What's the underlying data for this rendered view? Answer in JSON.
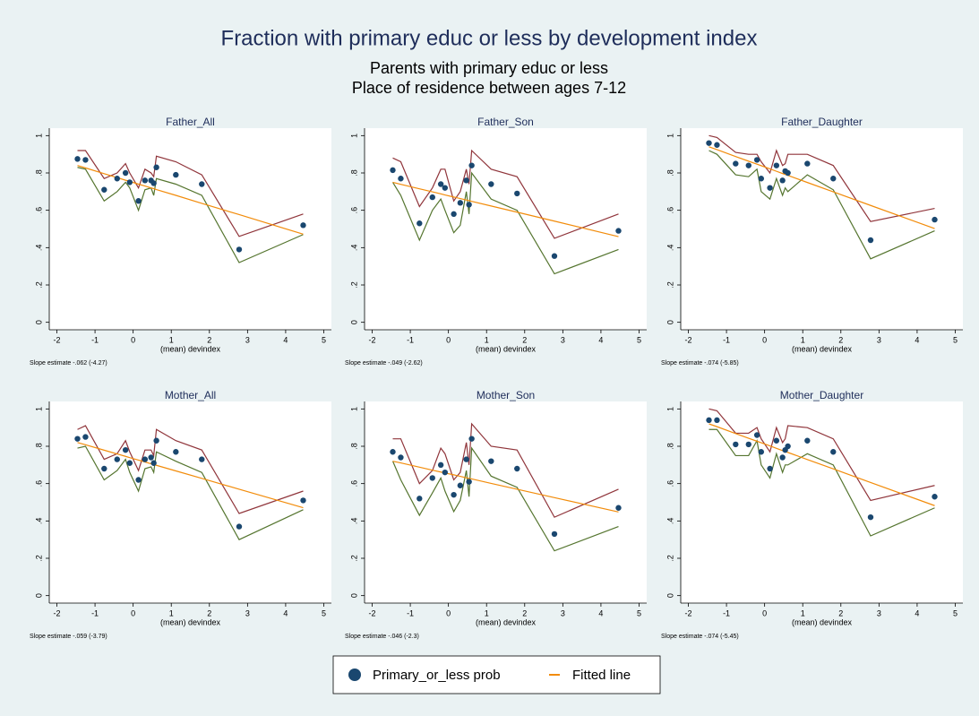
{
  "title": "Fraction with primary educ or less by development index",
  "subtitle": [
    "Parents with primary educ or less",
    "Place of residence between ages 7-12"
  ],
  "chart_data": [
    {
      "type": "scatter",
      "title": "Father_All",
      "xlabel": "(mean) devindex",
      "note": "Slope estimate -.062 (-4.27)",
      "x": [
        -1.46,
        -1.25,
        -0.76,
        -0.42,
        -0.2,
        -0.09,
        0.14,
        0.31,
        0.47,
        0.54,
        0.61,
        1.12,
        1.8,
        2.78,
        4.46
      ],
      "xlim": [
        -2.2,
        5.2
      ],
      "ylim": [
        -0.04,
        1.04
      ],
      "xticks": [
        -2,
        -1,
        0,
        1,
        2,
        3,
        4,
        5
      ],
      "yticks": [
        0,
        {
          "value": 0.2,
          "label": ".2"
        },
        {
          "value": 0.4,
          "label": ".4"
        },
        {
          "value": 0.6,
          "label": ".6"
        },
        {
          "value": 0.8,
          "label": ".8"
        },
        1
      ],
      "series": [
        {
          "mode": "line",
          "color": "#90353b",
          "values": [
            0.92,
            0.92,
            0.77,
            0.8,
            0.85,
            0.8,
            0.72,
            0.82,
            0.8,
            0.78,
            0.89,
            0.86,
            0.79,
            0.46,
            0.58
          ]
        },
        {
          "mode": "line",
          "color": "#55752f",
          "values": [
            0.83,
            0.82,
            0.65,
            0.7,
            0.75,
            0.72,
            0.6,
            0.71,
            0.72,
            0.68,
            0.77,
            0.74,
            0.68,
            0.32,
            0.47
          ]
        },
        {
          "name": "Fitted line",
          "mode": "line",
          "color": "#f28c0b",
          "values": [
            0.84,
            0.827,
            0.796,
            0.775,
            0.761,
            0.755,
            0.74,
            0.73,
            0.72,
            0.716,
            0.711,
            0.68,
            0.637,
            0.577,
            0.472
          ]
        },
        {
          "name": "Primary_or_less prob",
          "mode": "markers",
          "color": "#1a476f",
          "values": [
            0.875,
            0.87,
            0.71,
            0.77,
            0.8,
            0.75,
            0.65,
            0.76,
            0.76,
            0.745,
            0.83,
            0.79,
            0.74,
            0.39,
            0.52
          ]
        }
      ]
    },
    {
      "type": "scatter",
      "title": "Father_Son",
      "xlabel": "(mean) devindex",
      "note": "Slope estimate -.049 (-2.62)",
      "x": [
        -1.46,
        -1.25,
        -0.76,
        -0.42,
        -0.2,
        -0.09,
        0.14,
        0.31,
        0.47,
        0.54,
        0.61,
        1.12,
        1.8,
        2.78,
        4.46
      ],
      "xlim": [
        -2.2,
        5.2
      ],
      "ylim": [
        -0.04,
        1.04
      ],
      "xticks": [
        -2,
        -1,
        0,
        1,
        2,
        3,
        4,
        5
      ],
      "yticks": [
        0,
        {
          "value": 0.2,
          "label": ".2"
        },
        {
          "value": 0.4,
          "label": ".4"
        },
        {
          "value": 0.6,
          "label": ".6"
        },
        {
          "value": 0.8,
          "label": ".8"
        },
        1
      ],
      "series": [
        {
          "mode": "line",
          "color": "#90353b",
          "values": [
            0.88,
            0.86,
            0.62,
            0.72,
            0.82,
            0.82,
            0.65,
            0.7,
            0.82,
            0.74,
            0.92,
            0.82,
            0.78,
            0.45,
            0.58
          ]
        },
        {
          "mode": "line",
          "color": "#55752f",
          "values": [
            0.75,
            0.68,
            0.44,
            0.6,
            0.66,
            0.6,
            0.48,
            0.52,
            0.7,
            0.58,
            0.8,
            0.66,
            0.6,
            0.26,
            0.39
          ]
        },
        {
          "name": "Fitted line",
          "mode": "line",
          "color": "#f28c0b",
          "values": [
            0.75,
            0.739,
            0.715,
            0.699,
            0.688,
            0.682,
            0.671,
            0.663,
            0.655,
            0.652,
            0.648,
            0.623,
            0.59,
            0.542,
            0.459
          ]
        },
        {
          "name": "Primary_or_less prob",
          "mode": "markers",
          "color": "#1a476f",
          "values": [
            0.815,
            0.77,
            0.53,
            0.67,
            0.74,
            0.72,
            0.58,
            0.64,
            0.76,
            0.63,
            0.84,
            0.74,
            0.69,
            0.355,
            0.49
          ]
        }
      ]
    },
    {
      "type": "scatter",
      "title": "Father_Daughter",
      "xlabel": "(mean) devindex",
      "note": "Slope estimate -.074 (-5.85)",
      "x": [
        -1.46,
        -1.25,
        -0.76,
        -0.42,
        -0.2,
        -0.09,
        0.14,
        0.31,
        0.47,
        0.54,
        0.61,
        1.12,
        1.8,
        2.78,
        4.46
      ],
      "xlim": [
        -2.2,
        5.2
      ],
      "ylim": [
        -0.04,
        1.04
      ],
      "xticks": [
        -2,
        -1,
        0,
        1,
        2,
        3,
        4,
        5
      ],
      "yticks": [
        0,
        {
          "value": 0.2,
          "label": ".2"
        },
        {
          "value": 0.4,
          "label": ".4"
        },
        {
          "value": 0.6,
          "label": ".6"
        },
        {
          "value": 0.8,
          "label": ".8"
        },
        1
      ],
      "series": [
        {
          "mode": "line",
          "color": "#90353b",
          "values": [
            1.0,
            0.99,
            0.91,
            0.9,
            0.9,
            0.86,
            0.8,
            0.92,
            0.84,
            0.85,
            0.9,
            0.9,
            0.84,
            0.54,
            0.61
          ]
        },
        {
          "mode": "line",
          "color": "#55752f",
          "values": [
            0.92,
            0.9,
            0.79,
            0.78,
            0.82,
            0.7,
            0.66,
            0.77,
            0.68,
            0.72,
            0.7,
            0.79,
            0.71,
            0.34,
            0.49
          ]
        },
        {
          "name": "Fitted line",
          "mode": "line",
          "color": "#f28c0b",
          "values": [
            0.94,
            0.925,
            0.888,
            0.863,
            0.847,
            0.839,
            0.822,
            0.809,
            0.797,
            0.792,
            0.787,
            0.749,
            0.699,
            0.626,
            0.502
          ]
        },
        {
          "name": "Primary_or_less prob",
          "mode": "markers",
          "color": "#1a476f",
          "values": [
            0.96,
            0.95,
            0.85,
            0.84,
            0.87,
            0.77,
            0.72,
            0.84,
            0.76,
            0.81,
            0.8,
            0.85,
            0.77,
            0.44,
            0.55
          ]
        }
      ]
    },
    {
      "type": "scatter",
      "title": "Mother_All",
      "xlabel": "(mean) devindex",
      "note": "Slope estimate -.059 (-3.79)",
      "x": [
        -1.46,
        -1.25,
        -0.76,
        -0.42,
        -0.2,
        -0.09,
        0.14,
        0.31,
        0.47,
        0.54,
        0.61,
        1.12,
        1.8,
        2.78,
        4.46
      ],
      "xlim": [
        -2.2,
        5.2
      ],
      "ylim": [
        -0.04,
        1.04
      ],
      "xticks": [
        -2,
        -1,
        0,
        1,
        2,
        3,
        4,
        5
      ],
      "yticks": [
        0,
        {
          "value": 0.2,
          "label": ".2"
        },
        {
          "value": 0.4,
          "label": ".4"
        },
        {
          "value": 0.6,
          "label": ".6"
        },
        {
          "value": 0.8,
          "label": ".8"
        },
        1
      ],
      "series": [
        {
          "mode": "line",
          "color": "#90353b",
          "values": [
            0.89,
            0.91,
            0.73,
            0.76,
            0.83,
            0.77,
            0.67,
            0.78,
            0.78,
            0.75,
            0.89,
            0.83,
            0.78,
            0.44,
            0.56
          ]
        },
        {
          "mode": "line",
          "color": "#55752f",
          "values": [
            0.79,
            0.8,
            0.62,
            0.67,
            0.73,
            0.66,
            0.56,
            0.68,
            0.69,
            0.66,
            0.77,
            0.72,
            0.66,
            0.3,
            0.46
          ]
        },
        {
          "name": "Fitted line",
          "mode": "line",
          "color": "#f28c0b",
          "values": [
            0.82,
            0.808,
            0.779,
            0.759,
            0.746,
            0.739,
            0.726,
            0.716,
            0.706,
            0.702,
            0.698,
            0.668,
            0.628,
            0.57,
            0.471
          ]
        },
        {
          "name": "Primary_or_less prob",
          "mode": "markers",
          "color": "#1a476f",
          "values": [
            0.84,
            0.85,
            0.68,
            0.73,
            0.78,
            0.71,
            0.62,
            0.73,
            0.74,
            0.71,
            0.83,
            0.77,
            0.73,
            0.37,
            0.51
          ]
        }
      ]
    },
    {
      "type": "scatter",
      "title": "Mother_Son",
      "xlabel": "(mean) devindex",
      "note": "Slope estimate -.046 (-2.3)",
      "x": [
        -1.46,
        -1.25,
        -0.76,
        -0.42,
        -0.2,
        -0.09,
        0.14,
        0.31,
        0.47,
        0.54,
        0.61,
        1.12,
        1.8,
        2.78,
        4.46
      ],
      "xlim": [
        -2.2,
        5.2
      ],
      "ylim": [
        -0.04,
        1.04
      ],
      "xticks": [
        -2,
        -1,
        0,
        1,
        2,
        3,
        4,
        5
      ],
      "yticks": [
        0,
        {
          "value": 0.2,
          "label": ".2"
        },
        {
          "value": 0.4,
          "label": ".4"
        },
        {
          "value": 0.6,
          "label": ".6"
        },
        {
          "value": 0.8,
          "label": ".8"
        },
        1
      ],
      "series": [
        {
          "mode": "line",
          "color": "#90353b",
          "values": [
            0.84,
            0.84,
            0.6,
            0.67,
            0.79,
            0.76,
            0.62,
            0.66,
            0.82,
            0.7,
            0.92,
            0.8,
            0.78,
            0.42,
            0.57
          ]
        },
        {
          "mode": "line",
          "color": "#55752f",
          "values": [
            0.72,
            0.62,
            0.43,
            0.55,
            0.63,
            0.56,
            0.45,
            0.51,
            0.67,
            0.53,
            0.79,
            0.64,
            0.58,
            0.24,
            0.37
          ]
        },
        {
          "name": "Fitted line",
          "mode": "line",
          "color": "#f28c0b",
          "values": [
            0.72,
            0.711,
            0.688,
            0.672,
            0.662,
            0.657,
            0.647,
            0.639,
            0.631,
            0.628,
            0.625,
            0.601,
            0.57,
            0.525,
            0.448
          ]
        },
        {
          "name": "Primary_or_less prob",
          "mode": "markers",
          "color": "#1a476f",
          "values": [
            0.77,
            0.74,
            0.52,
            0.63,
            0.7,
            0.66,
            0.54,
            0.59,
            0.73,
            0.61,
            0.84,
            0.72,
            0.68,
            0.33,
            0.47
          ]
        }
      ]
    },
    {
      "type": "scatter",
      "title": "Mother_Daughter",
      "xlabel": "(mean) devindex",
      "note": "Slope estimate -.074 (-5.45)",
      "x": [
        -1.46,
        -1.25,
        -0.76,
        -0.42,
        -0.2,
        -0.09,
        0.14,
        0.31,
        0.47,
        0.54,
        0.61,
        1.12,
        1.8,
        2.78,
        4.46
      ],
      "xlim": [
        -2.2,
        5.2
      ],
      "ylim": [
        -0.04,
        1.04
      ],
      "xticks": [
        -2,
        -1,
        0,
        1,
        2,
        3,
        4,
        5
      ],
      "yticks": [
        0,
        {
          "value": 0.2,
          "label": ".2"
        },
        {
          "value": 0.4,
          "label": ".4"
        },
        {
          "value": 0.6,
          "label": ".6"
        },
        {
          "value": 0.8,
          "label": ".8"
        },
        1
      ],
      "series": [
        {
          "mode": "line",
          "color": "#90353b",
          "values": [
            1.0,
            0.99,
            0.87,
            0.87,
            0.9,
            0.84,
            0.77,
            0.9,
            0.82,
            0.84,
            0.91,
            0.9,
            0.84,
            0.51,
            0.59
          ]
        },
        {
          "mode": "line",
          "color": "#55752f",
          "values": [
            0.89,
            0.89,
            0.75,
            0.75,
            0.83,
            0.7,
            0.63,
            0.76,
            0.66,
            0.7,
            0.7,
            0.76,
            0.7,
            0.32,
            0.47
          ]
        },
        {
          "name": "Fitted line",
          "mode": "line",
          "color": "#f28c0b",
          "values": [
            0.92,
            0.905,
            0.868,
            0.843,
            0.827,
            0.819,
            0.802,
            0.789,
            0.777,
            0.772,
            0.767,
            0.729,
            0.679,
            0.606,
            0.482
          ]
        },
        {
          "name": "Primary_or_less prob",
          "mode": "markers",
          "color": "#1a476f",
          "values": [
            0.94,
            0.94,
            0.81,
            0.81,
            0.86,
            0.77,
            0.68,
            0.83,
            0.74,
            0.78,
            0.8,
            0.83,
            0.77,
            0.42,
            0.53
          ]
        }
      ]
    }
  ]
}
